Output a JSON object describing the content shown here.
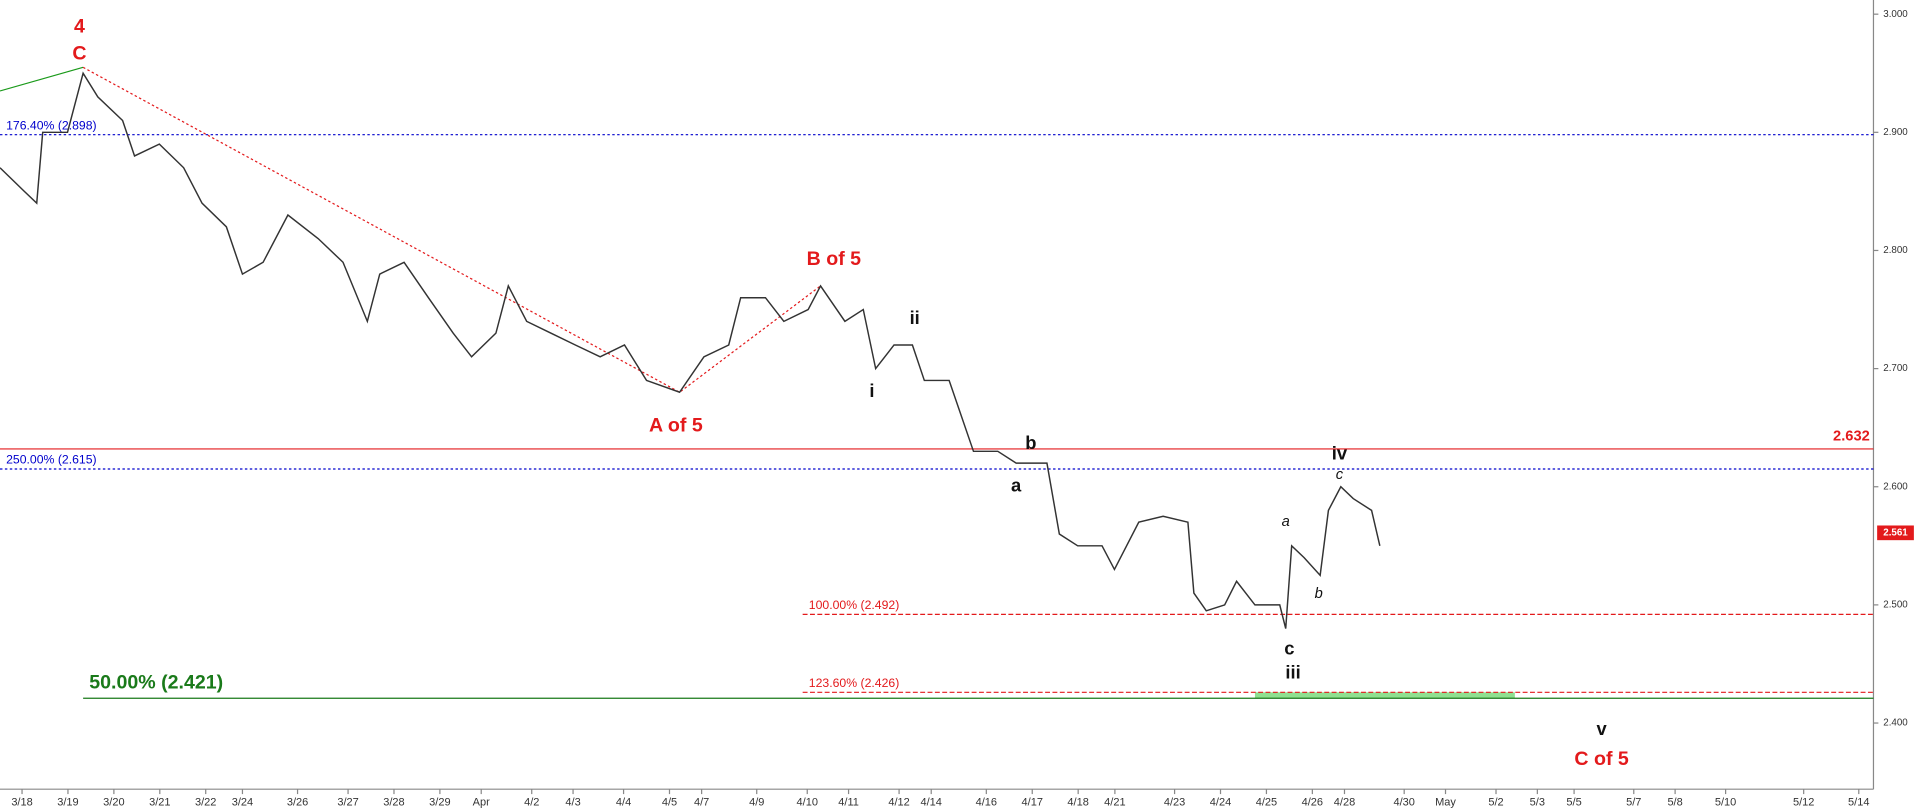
{
  "chart_data": {
    "type": "line",
    "xlim": [
      -0.48,
      40.32
    ],
    "ylim": [
      2.344,
      3.012
    ],
    "xticks": [
      {
        "value": 0,
        "label": "3/18"
      },
      {
        "value": 1,
        "label": "3/19"
      },
      {
        "value": 2,
        "label": "3/20"
      },
      {
        "value": 3,
        "label": "3/21"
      },
      {
        "value": 4,
        "label": "3/22"
      },
      {
        "value": 4.8,
        "label": "3/24"
      },
      {
        "value": 6,
        "label": "3/26"
      },
      {
        "value": 7.1,
        "label": "3/27"
      },
      {
        "value": 8.1,
        "label": "3/28"
      },
      {
        "value": 9.1,
        "label": "3/29"
      },
      {
        "value": 10,
        "label": "Apr"
      },
      {
        "value": 11.1,
        "label": "4/2"
      },
      {
        "value": 12,
        "label": "4/3"
      },
      {
        "value": 13.1,
        "label": "4/4"
      },
      {
        "value": 14.1,
        "label": "4/5"
      },
      {
        "value": 14.8,
        "label": "4/7"
      },
      {
        "value": 16,
        "label": "4/9"
      },
      {
        "value": 17.1,
        "label": "4/10"
      },
      {
        "value": 18,
        "label": "4/11"
      },
      {
        "value": 19.1,
        "label": "4/12"
      },
      {
        "value": 19.8,
        "label": "4/14"
      },
      {
        "value": 21,
        "label": "4/16"
      },
      {
        "value": 22,
        "label": "4/17"
      },
      {
        "value": 23,
        "label": "4/18"
      },
      {
        "value": 23.8,
        "label": "4/21"
      },
      {
        "value": 25.1,
        "label": "4/23"
      },
      {
        "value": 26.1,
        "label": "4/24"
      },
      {
        "value": 27.1,
        "label": "4/25"
      },
      {
        "value": 28.1,
        "label": "4/26"
      },
      {
        "value": 28.8,
        "label": "4/28"
      },
      {
        "value": 30.1,
        "label": "4/30"
      },
      {
        "value": 31,
        "label": "May"
      },
      {
        "value": 32.1,
        "label": "5/2"
      },
      {
        "value": 33,
        "label": "5/3"
      },
      {
        "value": 33.8,
        "label": "5/5"
      },
      {
        "value": 35.1,
        "label": "5/7"
      },
      {
        "value": 36,
        "label": "5/8"
      },
      {
        "value": 37.1,
        "label": "5/10"
      },
      {
        "value": 38.8,
        "label": "5/12"
      },
      {
        "value": 40,
        "label": "5/14"
      }
    ],
    "yticks": [
      {
        "value": 2.4,
        "label": "2.400"
      },
      {
        "value": 2.5,
        "label": "2.500"
      },
      {
        "value": 2.6,
        "label": "2.600"
      },
      {
        "value": 2.7,
        "label": "2.700"
      },
      {
        "value": 2.8,
        "label": "2.800"
      },
      {
        "value": 2.9,
        "label": "2.900"
      },
      {
        "value": 3.0,
        "label": "3.000"
      }
    ],
    "series": [
      {
        "color": "#333333",
        "x": [
          -0.48,
          0.05,
          0.32,
          0.45,
          0.99,
          1.33,
          1.65,
          2.19,
          2.45,
          2.99,
          3.52,
          3.92,
          4.45,
          4.8,
          5.25,
          5.79,
          6.45,
          6.99,
          7.52,
          7.79,
          8.32,
          8.85,
          9.39,
          9.79,
          10.32,
          10.59,
          10.99,
          11.52,
          12.05,
          12.59,
          13.12,
          13.6,
          14.32,
          14.85,
          15.39,
          15.65,
          16.19,
          16.59,
          17.12,
          17.39,
          17.92,
          18.32,
          18.59,
          18.99,
          19.39,
          19.65,
          20.19,
          20.72,
          21.25,
          21.65,
          22.32,
          22.59,
          22.99,
          23.52,
          23.79,
          24.32,
          24.85,
          25.39,
          25.52,
          25.79,
          26.19,
          26.45,
          26.85,
          27.39,
          27.52,
          27.65,
          27.92,
          28.27,
          28.45,
          28.72,
          28.99,
          29.39,
          29.57
        ],
        "values": [
          2.87,
          2.85,
          2.84,
          2.9,
          2.9,
          2.95,
          2.93,
          2.91,
          2.88,
          2.89,
          2.87,
          2.84,
          2.82,
          2.78,
          2.79,
          2.83,
          2.81,
          2.79,
          2.74,
          2.78,
          2.79,
          2.76,
          2.73,
          2.71,
          2.73,
          2.77,
          2.74,
          2.73,
          2.72,
          2.71,
          2.72,
          2.69,
          2.68,
          2.71,
          2.72,
          2.76,
          2.76,
          2.74,
          2.75,
          2.77,
          2.74,
          2.75,
          2.7,
          2.72,
          2.72,
          2.69,
          2.69,
          2.63,
          2.63,
          2.62,
          2.62,
          2.56,
          2.55,
          2.55,
          2.53,
          2.57,
          2.575,
          2.57,
          2.51,
          2.495,
          2.5,
          2.52,
          2.5,
          2.5,
          2.48,
          2.55,
          2.54,
          2.525,
          2.58,
          2.6,
          2.59,
          2.58,
          2.55
        ]
      }
    ],
    "last_price": 2.561,
    "levels": [
      {
        "label": "176.40% (2.898)",
        "value": 2.898,
        "color": "#0000cc",
        "style": "dotted"
      },
      {
        "label": "250.00% (2.615)",
        "value": 2.615,
        "color": "#0000cc",
        "style": "dotted"
      },
      {
        "label": "2.632",
        "value": 2.632,
        "color": "#e31a1c",
        "style": "solid",
        "label_side": "right"
      },
      {
        "label": "100.00% (2.492)",
        "value": 2.492,
        "color": "#e31a1c",
        "style": "dashed",
        "x_start": 17.0
      },
      {
        "label": "123.60% (2.426)",
        "value": 2.426,
        "color": "#e31a1c",
        "style": "dashed",
        "x_start": 17.0
      },
      {
        "label": "50.00% (2.421)",
        "value": 2.421,
        "color": "#1a7a1a",
        "style": "solid",
        "x_start": 1.33,
        "label_size": "large"
      }
    ],
    "trendlines": [
      {
        "x": [
          -0.48,
          1.33
        ],
        "y": [
          2.935,
          2.955
        ],
        "color": "#1a9a1a",
        "style": "solid"
      },
      {
        "x": [
          1.33,
          14.32,
          17.39
        ],
        "y": [
          2.955,
          2.68,
          2.77
        ],
        "color": "#e31a1c",
        "style": "dotted"
      }
    ],
    "zone": {
      "x": [
        26.85,
        32.51
      ],
      "y": [
        2.421,
        2.426
      ],
      "color": "#90e090"
    },
    "annotations": [
      {
        "text": "4",
        "x": 1.25,
        "y": 2.989,
        "color": "#e31a1c",
        "style": "large"
      },
      {
        "text": "C",
        "x": 1.25,
        "y": 2.966,
        "color": "#e31a1c",
        "style": "large"
      },
      {
        "text": "B of 5",
        "x": 17.68,
        "y": 2.792,
        "color": "#e31a1c",
        "style": "large"
      },
      {
        "text": "A of 5",
        "x": 14.24,
        "y": 2.651,
        "color": "#e31a1c",
        "style": "large"
      },
      {
        "text": "C of 5",
        "x": 34.4,
        "y": 2.369,
        "color": "#e31a1c",
        "style": "large"
      },
      {
        "text": "i",
        "x": 18.51,
        "y": 2.68,
        "color": "#111111",
        "style": "bold"
      },
      {
        "text": "ii",
        "x": 19.44,
        "y": 2.742,
        "color": "#111111",
        "style": "bold"
      },
      {
        "text": "iii",
        "x": 27.68,
        "y": 2.442,
        "color": "#111111",
        "style": "bold"
      },
      {
        "text": "iv",
        "x": 28.69,
        "y": 2.627,
        "color": "#111111",
        "style": "bold"
      },
      {
        "text": "v",
        "x": 34.4,
        "y": 2.394,
        "color": "#111111",
        "style": "bold"
      },
      {
        "text": "a",
        "x": 21.65,
        "y": 2.6,
        "color": "#111111",
        "style": "bold"
      },
      {
        "text": "b",
        "x": 21.97,
        "y": 2.636,
        "color": "#111111",
        "style": "bold"
      },
      {
        "text": "c",
        "x": 27.6,
        "y": 2.462,
        "color": "#111111",
        "style": "bold"
      },
      {
        "text": "a",
        "x": 27.52,
        "y": 2.57,
        "color": "#111111",
        "style": "italic"
      },
      {
        "text": "b",
        "x": 28.24,
        "y": 2.509,
        "color": "#111111",
        "style": "italic"
      },
      {
        "text": "c",
        "x": 28.69,
        "y": 2.61,
        "color": "#111111",
        "style": "italic"
      }
    ]
  }
}
